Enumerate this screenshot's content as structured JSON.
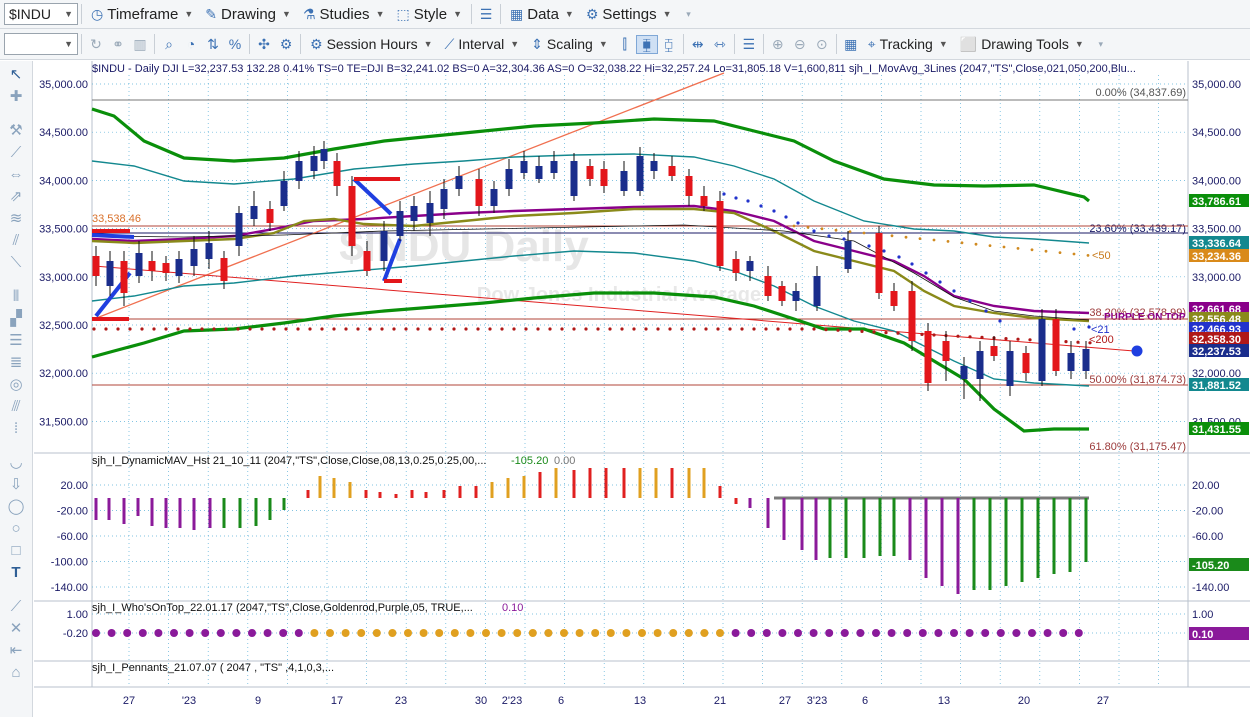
{
  "toolbar1": {
    "symbol": "$INDU",
    "timeframe": "Timeframe",
    "drawing": "Drawing",
    "studies": "Studies",
    "style": "Style",
    "data": "Data",
    "settings": "Settings"
  },
  "toolbar2": {
    "session_hours": "Session Hours",
    "interval": "Interval",
    "scaling": "Scaling",
    "tracking": "Tracking",
    "drawing_tools": "Drawing Tools"
  },
  "header": {
    "line": "$INDU - Daily  DJI   L=32,237.53  132.28  0.41%   TS=0  TE=DJI  B=32,241.02  BS=0  A=32,304.36  AS=0  O=32,038.22  Hi=32,257.24  Lo=31,805.18  V=1,600,811  sjh_I_MovAvg_3Lines (2047,\"TS\",Close,021,050,200,Blu..."
  },
  "watermark": {
    "symbol": "$INDU Daily",
    "name": "Dow Jones Industrial Average"
  },
  "colors": {
    "up_candle": "#1a2d8c",
    "down_candle": "#e3161b",
    "band_outer": "#0a8f0a",
    "band_inner": "#13888f",
    "ma_purple": "#8a008a",
    "ma_olive": "#8a8a1a",
    "fib_line": "#b0463a",
    "hist_gold": "#e0a020",
    "hist_red": "#e02020",
    "hist_purple": "#8b1a9a",
    "hist_green": "#1a8a1a"
  },
  "price_axis": {
    "ticks": [
      "35,000.00",
      "34,500.00",
      "34,000.00",
      "33,500.00",
      "33,000.00",
      "32,500.00",
      "32,000.00",
      "31,500.00"
    ],
    "right_ticks": [
      "35,000.00",
      "34,500.00",
      "34,000.00",
      "33,500.00",
      "33,000.00",
      "32,500.00",
      "32,000.00",
      "31,500.00"
    ]
  },
  "fib": {
    "f0": "0.00% (34,837.69)",
    "f236": "23.60% (33,439.17)",
    "f382": "38.20% (32,578.99)",
    "f50": "50.00% (31,874.73)",
    "f618": "61.80% (31,175.47)",
    "left_label": "33,538.46"
  },
  "ma_labels": {
    "ma50": "<50",
    "ma21": "<21",
    "ma200": "<200",
    "purple_label": "PURPLE ON TOP"
  },
  "price_tags": [
    {
      "text": "33,786.61",
      "bg": "#0a8f0a"
    },
    {
      "text": "33,336.64",
      "bg": "#13888f"
    },
    {
      "text": "33,234.36",
      "bg": "#d98a1a"
    },
    {
      "text": "32,661.68",
      "bg": "#8a008a"
    },
    {
      "text": "32,556.48",
      "bg": "#8a8a1a"
    },
    {
      "text": "32,466.93",
      "bg": "#2233cc"
    },
    {
      "text": "32,358.30",
      "bg": "#b01818"
    },
    {
      "text": "32,237.53",
      "bg": "#1a2d8c"
    },
    {
      "text": "31,881.52",
      "bg": "#13888f"
    },
    {
      "text": "31,431.55",
      "bg": "#0a8f0a"
    }
  ],
  "panel2": {
    "title": "sjh_I_DynamicMAV_Hst 21_10_11 (2047,\"TS\",Close,Close,08,13,0.25,0.25,00,...",
    "value1": "-105.20",
    "value2": "0.00",
    "ticks": [
      "20.00",
      "-20.00",
      "-60.00",
      "-100.00",
      "-140.00"
    ],
    "right_ticks": [
      "20.00",
      "-20.00",
      "-60.00",
      "-100.00",
      "-140.00"
    ],
    "tag": "-105.20"
  },
  "panel3": {
    "title": "sjh_I_Who'sOnTop_22.01.17 (2047,\"TS\",Close,Goldenrod,Purple,05, TRUE,...",
    "value": "0.10",
    "ticks": [
      "1.00",
      "-0.20"
    ],
    "right_ticks": [
      "1.00",
      "-0.20"
    ],
    "tag": "0.10"
  },
  "panel4": {
    "title": "sjh_I_Pennants_21.07.07 ( 2047 , \"TS\" ,4,1,0,3,..."
  },
  "time_axis": [
    {
      "label": "27"
    },
    {
      "label": "'23"
    },
    {
      "label": "9"
    },
    {
      "label": "17"
    },
    {
      "label": "23"
    },
    {
      "label": "30"
    },
    {
      "label": "2'23"
    },
    {
      "label": "6"
    },
    {
      "label": "13"
    },
    {
      "label": "21"
    },
    {
      "label": "27"
    },
    {
      "label": "3'23"
    },
    {
      "label": "6"
    },
    {
      "label": "13"
    },
    {
      "label": "20"
    },
    {
      "label": "27"
    }
  ]
}
